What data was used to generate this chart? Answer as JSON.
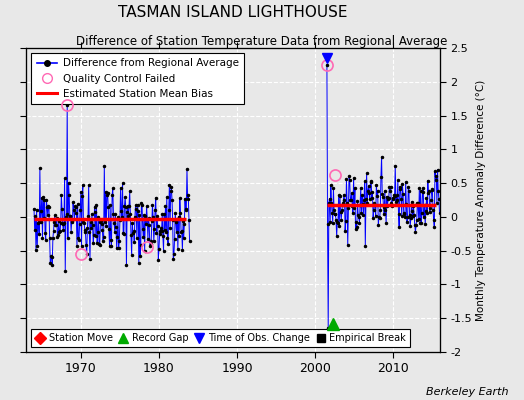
{
  "title": "TASMAN ISLAND LIGHTHOUSE",
  "subtitle": "Difference of Station Temperature Data from Regional Average",
  "ylabel": "Monthly Temperature Anomaly Difference (°C)",
  "credit": "Berkeley Earth",
  "ylim": [
    -2.0,
    2.5
  ],
  "yticks": [
    -2.0,
    -1.5,
    -1.0,
    -0.5,
    0.0,
    0.5,
    1.0,
    1.5,
    2.0,
    2.5
  ],
  "xlim": [
    1963,
    2016
  ],
  "xticks": [
    1970,
    1980,
    1990,
    2000,
    2010
  ],
  "fig_bg": "#e8e8e8",
  "plot_bg": "#e8e8e8",
  "segment1_bias": -0.03,
  "segment2_bias": 0.18,
  "segment1_start": 1964.0,
  "segment1_end": 1983.5,
  "segment2_start": 2001.5,
  "segment2_end": 2015.5,
  "qc_failed": [
    [
      1968.25,
      1.65
    ],
    [
      1970.08,
      -0.55
    ],
    [
      1978.5,
      -0.45
    ],
    [
      2001.5,
      2.25
    ],
    [
      2002.5,
      0.62
    ]
  ],
  "record_gap_x": 2002.3,
  "record_gap_y": -1.58,
  "time_obs_change_x": 2001.5,
  "time_obs_change_y": 2.35,
  "spike1_x": 1968.25,
  "spike1_y": 1.65,
  "spike2_x": 2001.5,
  "spike2_y": 2.25,
  "spike2_down_x": 2001.7,
  "spike2_down_y": -1.65
}
